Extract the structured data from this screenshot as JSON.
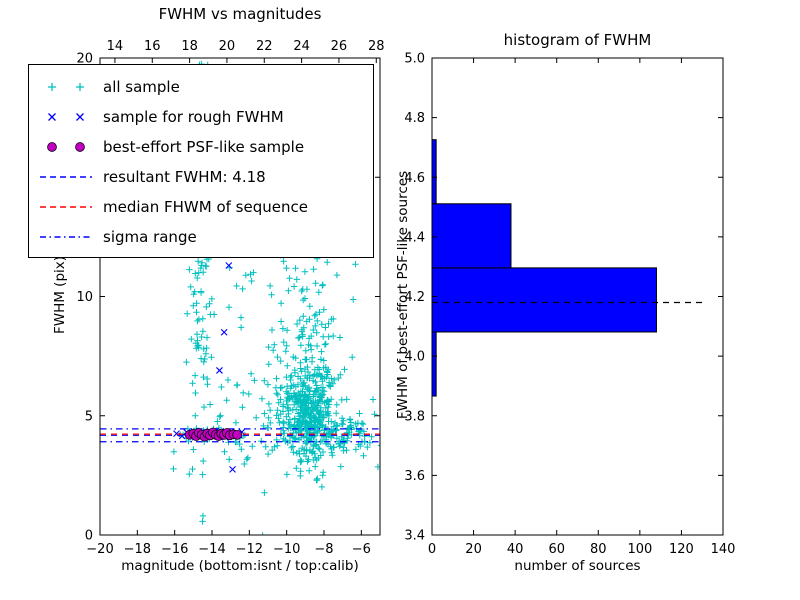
{
  "figure": {
    "background": "#ffffff",
    "frame_color": "#000000"
  },
  "chart_data": [
    {
      "type": "scatter",
      "title": "FWHM vs magnitudes",
      "xlabel": "magnitude (bottom:isnt / top:calib)",
      "ylabel": "FWHM (pix)",
      "xlim": [
        -20,
        -5
      ],
      "ylim": [
        0,
        20
      ],
      "x_ticks": {
        "values": [
          -20,
          -18,
          -16,
          -14,
          -12,
          -10,
          -8,
          -6
        ],
        "labels": [
          "−20",
          "−18",
          "−16",
          "−14",
          "−12",
          "−10",
          "−8",
          "−6"
        ]
      },
      "y_ticks": {
        "values": [
          0,
          5,
          10,
          15,
          20
        ],
        "labels": [
          "0",
          "5",
          "10",
          "15",
          "20"
        ]
      },
      "top_axis": {
        "lim": [
          13.2,
          28.2
        ],
        "values": [
          14,
          16,
          18,
          20,
          22,
          24,
          26,
          28
        ],
        "labels": [
          "14",
          "16",
          "18",
          "20",
          "22",
          "24",
          "26",
          "28"
        ]
      },
      "series": [
        {
          "name": "all sample",
          "marker": "plus",
          "color": "#00bfbf",
          "seed": 12,
          "clusters": [
            {
              "cx": -14.65,
              "sx": 0.33,
              "cy": 12.5,
              "sy": 4.8,
              "n": 120
            },
            {
              "cx": -12.4,
              "sx": 1.2,
              "cy": 11.5,
              "sy": 4.2,
              "n": 50
            },
            {
              "cx": -8.85,
              "sx": 0.7,
              "cy": 5.0,
              "sy": 1.0,
              "n": 400
            },
            {
              "cx": -8.6,
              "sx": 0.85,
              "cy": 7.8,
              "sy": 2.1,
              "n": 150
            },
            {
              "cx": -6.7,
              "sx": 0.8,
              "cy": 4.2,
              "sy": 0.45,
              "n": 80
            },
            {
              "cx": -11.4,
              "sx": 1.5,
              "cy": 5.2,
              "sy": 1.1,
              "n": 35
            },
            {
              "cx": -9.6,
              "sx": 0.75,
              "cy": 15.5,
              "sy": 3.2,
              "n": 55
            },
            {
              "cx": -12.0,
              "sx": 2.4,
              "cy": 3.6,
              "sy": 0.5,
              "n": 18
            },
            {
              "cx": -14.0,
              "sx": 0.95,
              "cy": 4.22,
              "sy": 0.12,
              "n": 25
            }
          ]
        },
        {
          "name": "sample for rough FWHM",
          "marker": "x",
          "color": "#0000ff",
          "points": [
            [
              -15.9,
              4.25
            ],
            [
              -15.6,
              4.15
            ],
            [
              -15.35,
              4.3
            ],
            [
              -15.1,
              4.2
            ],
            [
              -14.9,
              4.1
            ],
            [
              -14.7,
              4.25
            ],
            [
              -14.5,
              4.18
            ],
            [
              -14.3,
              4.3
            ],
            [
              -14.15,
              4.12
            ],
            [
              -13.95,
              4.22
            ],
            [
              -13.8,
              4.35
            ],
            [
              -13.6,
              4.15
            ],
            [
              -13.45,
              4.28
            ],
            [
              -13.3,
              4.1
            ],
            [
              -13.15,
              4.22
            ],
            [
              -13.0,
              4.3
            ],
            [
              -12.85,
              4.15
            ],
            [
              -12.7,
              4.25
            ],
            [
              -12.55,
              4.2
            ],
            [
              -12.4,
              4.32
            ],
            [
              -13.1,
              11.3
            ],
            [
              -13.35,
              8.5
            ],
            [
              -13.6,
              6.9
            ],
            [
              -12.9,
              2.75
            ]
          ]
        },
        {
          "name": "best-effort PSF-like sample",
          "marker": "circle",
          "color": "#bf00bf",
          "edge_color": "#000000",
          "points": [
            [
              -15.2,
              4.2
            ],
            [
              -15.0,
              4.25
            ],
            [
              -14.85,
              4.15
            ],
            [
              -14.7,
              4.28
            ],
            [
              -14.55,
              4.2
            ],
            [
              -14.4,
              4.12
            ],
            [
              -14.25,
              4.25
            ],
            [
              -14.1,
              4.18
            ],
            [
              -13.95,
              4.3
            ],
            [
              -13.8,
              4.2
            ],
            [
              -13.65,
              4.15
            ],
            [
              -13.5,
              4.25
            ],
            [
              -13.35,
              4.2
            ],
            [
              -13.2,
              4.28
            ],
            [
              -13.05,
              4.18
            ],
            [
              -12.85,
              4.22
            ],
            [
              -12.65,
              4.2
            ]
          ]
        }
      ],
      "lines": [
        {
          "name": "resultant FWHM: 4.18",
          "y": 4.18,
          "color": "#0000ff",
          "style": "dashed"
        },
        {
          "name": "median FHWM of sequence",
          "y": 4.23,
          "color": "#ff0000",
          "style": "dashed"
        },
        {
          "name": "sigma range",
          "y": [
            4.45,
            3.91
          ],
          "color": "#0000ff",
          "style": "dashdot"
        }
      ],
      "legend": {
        "items": [
          {
            "label": "all sample",
            "marker": "plus",
            "color": "#00bfbf"
          },
          {
            "label": "sample for rough FWHM",
            "marker": "x",
            "color": "#0000ff"
          },
          {
            "label": "best-effort PSF-like sample",
            "marker": "circle",
            "color": "#bf00bf"
          },
          {
            "label": "resultant FWHM: 4.18",
            "marker": "dashed-line",
            "color": "#0000ff"
          },
          {
            "label": "median FHWM of sequence",
            "marker": "dashed-line",
            "color": "#ff0000"
          },
          {
            "label": "sigma range",
            "marker": "dashdot-line",
            "color": "#0000ff"
          }
        ]
      }
    },
    {
      "type": "bar",
      "orientation": "horizontal",
      "title": "histogram of FWHM",
      "xlabel": "number of sources",
      "ylabel": "FWHM of best-effort PSF-like sources",
      "xlim": [
        0,
        140
      ],
      "ylim": [
        3.4,
        5.0
      ],
      "x_ticks": {
        "values": [
          0,
          20,
          40,
          60,
          80,
          100,
          120,
          140
        ],
        "labels": [
          "0",
          "20",
          "40",
          "60",
          "80",
          "100",
          "120",
          "140"
        ]
      },
      "y_ticks": {
        "values": [
          3.4,
          3.6,
          3.8,
          4.0,
          4.2,
          4.4,
          4.6,
          4.8,
          5.0
        ],
        "labels": [
          "3.4",
          "3.6",
          "3.8",
          "4.0",
          "4.2",
          "4.4",
          "4.6",
          "4.8",
          "5.0"
        ]
      },
      "bins": {
        "edges": [
          3.866,
          4.081,
          4.296,
          4.511,
          4.726
        ],
        "counts": [
          2,
          108,
          38,
          2
        ]
      },
      "bar_color": "#0000ff",
      "bar_edge_color": "#000000",
      "median_line": {
        "y": 4.18,
        "x_start": 0,
        "x_end": 130,
        "color": "#000000",
        "style": "dashed"
      }
    }
  ]
}
